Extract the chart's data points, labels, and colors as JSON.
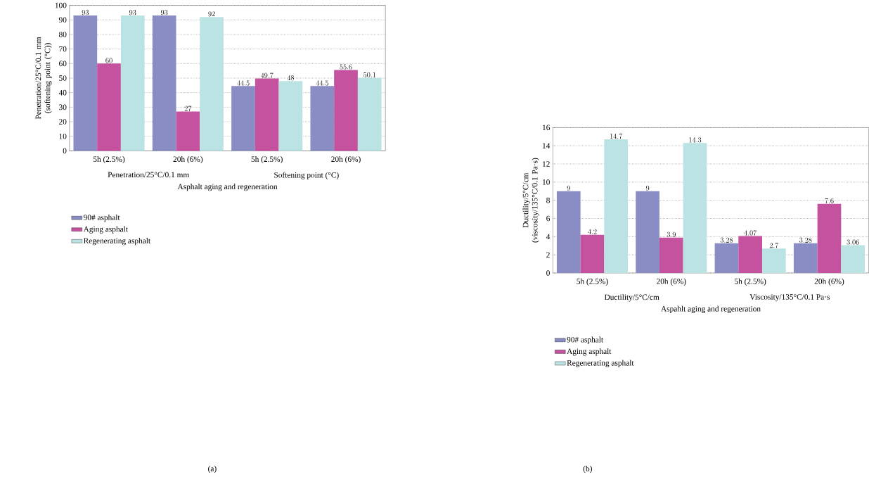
{
  "chart_data": [
    {
      "type": "bar",
      "categories": [
        "5h (2.5%)",
        "20h (6%)",
        "5h (2.5%)",
        "20h (6%)"
      ],
      "series": [
        {
          "name": "90# asphalt",
          "color": "#8a8cc4",
          "values": [
            93,
            93,
            44.5,
            44.5
          ]
        },
        {
          "name": "Aging asphalt",
          "color": "#c4529e",
          "values": [
            60,
            27,
            49.7,
            55.6
          ]
        },
        {
          "name": "Regenerating asphalt",
          "color": "#bce3e3",
          "values": [
            93,
            92,
            48,
            50.1
          ]
        }
      ],
      "ylabel": "Penetration/25°C/0.1 mm (softening point (°C))",
      "xlabel": "Asphalt aging and regeneration",
      "annotations": [
        "Penetration/25°C/0.1 mm",
        "Softening point (°C)",
        "(a)"
      ],
      "ylim": [
        0,
        100
      ],
      "yticks": [
        0,
        10,
        20,
        30,
        40,
        50,
        60,
        70,
        80,
        90,
        100
      ],
      "grid": "y",
      "legend": "bottom",
      "data_labels": true
    },
    {
      "type": "bar",
      "categories": [
        "5h (2.5%)",
        "20h (6%)",
        "5h (2.5%)",
        "20h (6%)"
      ],
      "series": [
        {
          "name": "90# asphalt",
          "color": "#8a8cc4",
          "values": [
            9,
            9,
            3.28,
            3.28
          ]
        },
        {
          "name": "Aging asphalt",
          "color": "#c4529e",
          "values": [
            4.2,
            3.9,
            4.07,
            7.6
          ]
        },
        {
          "name": "Regenerating asphalt",
          "color": "#bce3e3",
          "values": [
            14.7,
            14.3,
            2.7,
            3.06
          ]
        }
      ],
      "ylabel": "Ductility/5°C/cm (viscosity/135°C/0.1 Pa·s)",
      "xlabel": "Aspahlt aging and regeneration",
      "annotations": [
        "Ductility/5°C/cm",
        "Viscosity/135°C/0.1 Pa·s",
        "(b)"
      ],
      "ylim": [
        0,
        16
      ],
      "yticks": [
        0,
        2,
        4,
        6,
        8,
        10,
        12,
        14,
        16
      ],
      "grid": "y",
      "legend": "bottom",
      "data_labels": true
    }
  ]
}
